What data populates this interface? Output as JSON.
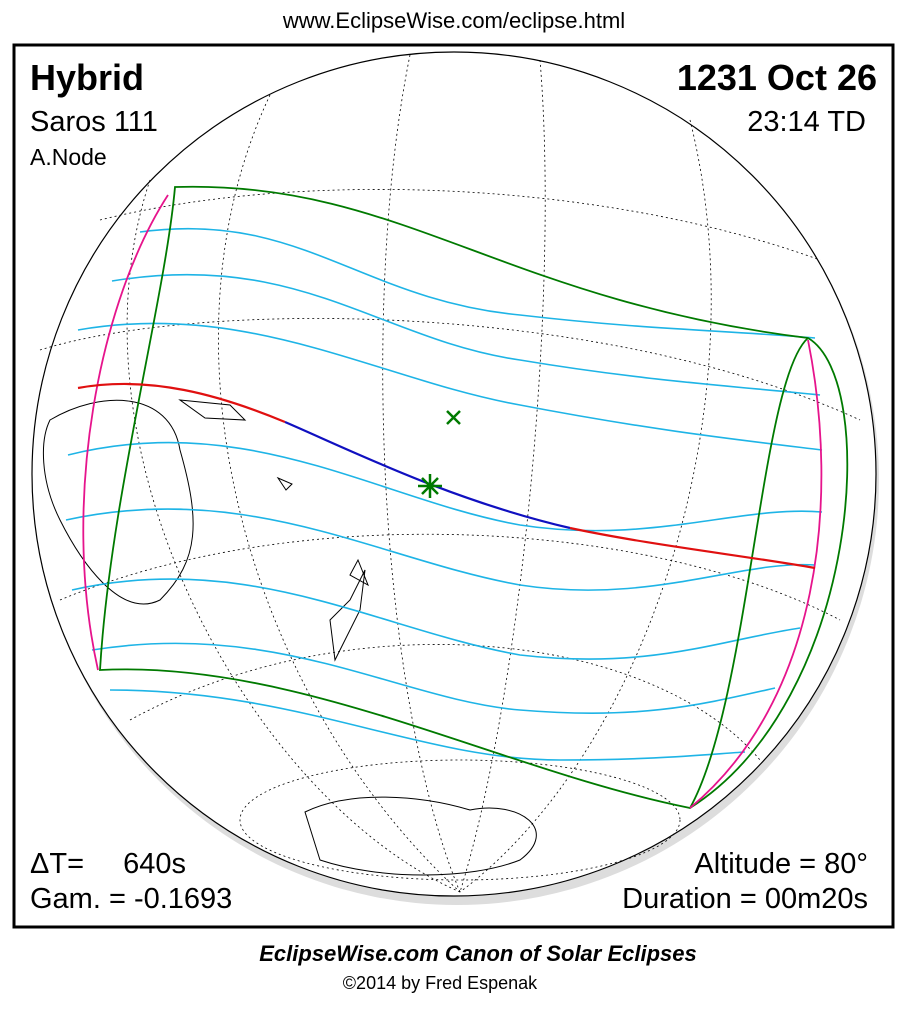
{
  "header": {
    "url": "www.EclipseWise.com/eclipse.html"
  },
  "eclipse": {
    "type": "Hybrid",
    "saros": "Saros 111",
    "node": "A.Node",
    "date": "1231 Oct 26",
    "time": "23:14 TD",
    "delta_t_label": "ΔT=",
    "delta_t": "640s",
    "gamma": "Gam. = -0.1693",
    "altitude": "Altitude = 80°",
    "duration": "Duration = 00m20s"
  },
  "footer": {
    "title": "EclipseWise.com Canon of Solar Eclipses",
    "credit": "©2014 by Fred Espenak"
  }
}
